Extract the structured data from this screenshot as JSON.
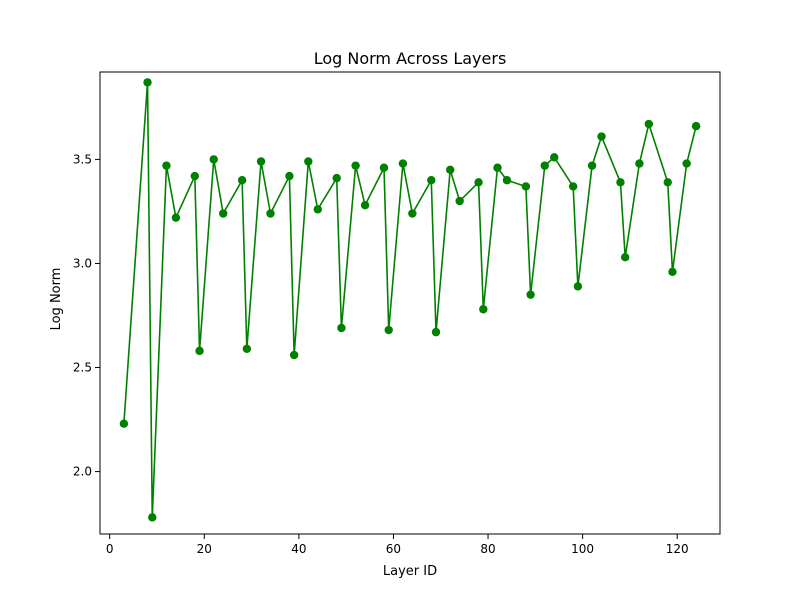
{
  "chart_data": {
    "type": "line",
    "title": "Log Norm Across Layers",
    "xlabel": "Layer ID",
    "ylabel": "Log Norm",
    "xlim": [
      -2.05,
      129.05
    ],
    "ylim": [
      1.7,
      3.92
    ],
    "xticks": [
      0,
      20,
      40,
      60,
      80,
      100,
      120
    ],
    "xtick_labels": [
      "0",
      "20",
      "40",
      "60",
      "80",
      "100",
      "120"
    ],
    "yticks": [
      2.0,
      2.5,
      3.0,
      3.5
    ],
    "ytick_labels": [
      "2.0",
      "2.5",
      "3.0",
      "3.5"
    ],
    "grid": false,
    "color": "#008000",
    "series": [
      {
        "x": [
          3,
          8,
          9,
          12,
          14,
          18,
          19,
          22,
          24,
          28,
          29,
          32,
          34,
          38,
          39,
          42,
          44,
          48,
          49,
          52,
          54,
          58,
          59,
          62,
          64,
          68,
          69,
          72,
          74,
          78,
          79,
          82,
          84,
          88,
          89,
          92,
          94,
          98,
          99,
          102,
          104,
          108,
          109,
          112,
          114,
          118,
          119,
          122,
          124
        ],
        "y": [
          2.23,
          3.87,
          1.78,
          3.47,
          3.22,
          3.42,
          2.58,
          3.5,
          3.24,
          3.4,
          2.59,
          3.49,
          3.24,
          3.42,
          2.56,
          3.49,
          3.26,
          3.41,
          2.69,
          3.47,
          3.28,
          3.46,
          2.68,
          3.48,
          3.24,
          3.4,
          2.67,
          3.45,
          3.3,
          3.39,
          2.78,
          3.46,
          3.4,
          3.37,
          2.85,
          3.47,
          3.51,
          3.37,
          2.89,
          3.47,
          3.61,
          3.39,
          3.03,
          3.48,
          3.67,
          3.39,
          2.96,
          3.48,
          3.66
        ]
      }
    ]
  }
}
